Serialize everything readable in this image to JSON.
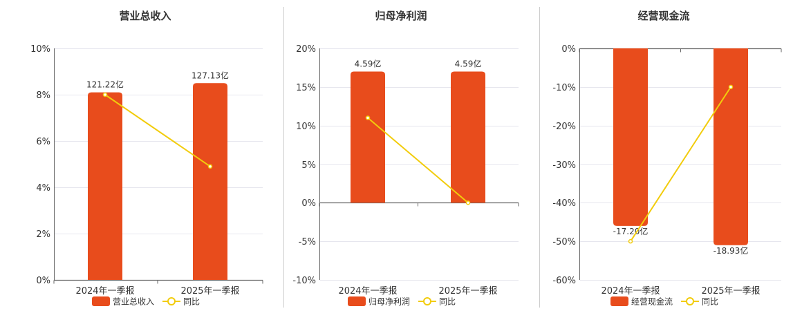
{
  "colors": {
    "bar": "#E84C1C",
    "line": "#F2CC0C",
    "grid": "#E6E6EE",
    "axis": "#666666",
    "divider": "#CCCCCC"
  },
  "chart_data": [
    {
      "type": "bar",
      "title": "营业总收入",
      "categories": [
        "2024年一季报",
        "2025年一季报"
      ],
      "series": [
        {
          "name": "营业总收入",
          "type": "bar",
          "values": [
            8.1,
            8.5
          ],
          "labels": [
            "121.22亿",
            "127.13亿"
          ]
        },
        {
          "name": "同比",
          "type": "line",
          "values": [
            8.0,
            4.9
          ]
        }
      ],
      "yticks": [
        "0%",
        "2%",
        "4%",
        "6%",
        "8%",
        "10%"
      ],
      "ylim": [
        0,
        10
      ]
    },
    {
      "type": "bar",
      "title": "归母净利润",
      "categories": [
        "2024年一季报",
        "2025年一季报"
      ],
      "series": [
        {
          "name": "归母净利润",
          "type": "bar",
          "values": [
            17,
            17
          ],
          "labels": [
            "4.59亿",
            "4.59亿"
          ]
        },
        {
          "name": "同比",
          "type": "line",
          "values": [
            11,
            0
          ]
        }
      ],
      "yticks": [
        "-10%",
        "-5%",
        "0%",
        "5%",
        "10%",
        "15%",
        "20%"
      ],
      "ylim": [
        -10,
        20
      ]
    },
    {
      "type": "bar",
      "title": "经营现金流",
      "categories": [
        "2024年一季报",
        "2025年一季报"
      ],
      "series": [
        {
          "name": "经营现金流",
          "type": "bar",
          "values": [
            -46,
            -51
          ],
          "labels": [
            "-17.20亿",
            "-18.93亿"
          ]
        },
        {
          "name": "同比",
          "type": "line",
          "values": [
            -50,
            -10
          ]
        }
      ],
      "yticks": [
        "-60%",
        "-50%",
        "-40%",
        "-30%",
        "-20%",
        "-10%",
        "0%"
      ],
      "ylim": [
        -60,
        0
      ]
    }
  ]
}
